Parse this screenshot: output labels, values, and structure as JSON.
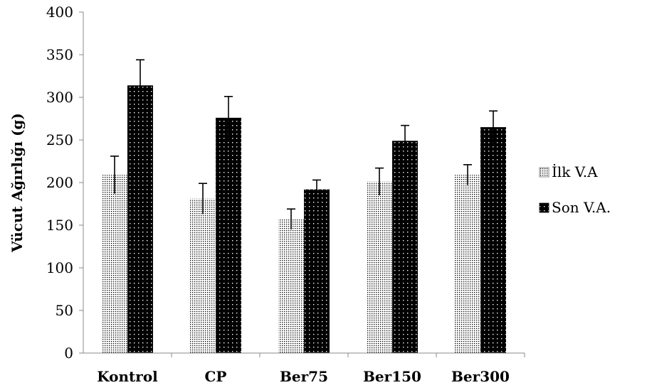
{
  "chart_data": {
    "type": "bar",
    "title": "",
    "xlabel": "",
    "ylabel": "Vücut Ağırlığı (g)",
    "ylim": [
      0,
      400
    ],
    "yticks": [
      0,
      50,
      100,
      150,
      200,
      250,
      300,
      350,
      400
    ],
    "grid": false,
    "legend_position": "right",
    "categories": [
      "Kontrol",
      "CP",
      "Ber75",
      "Ber150",
      "Ber300"
    ],
    "series": [
      {
        "name": "İlk V.A",
        "pattern": "fine-dots",
        "colors": {
          "fill": "#ffffff",
          "dot": "#000000"
        },
        "values": [
          209,
          181,
          157,
          201,
          209
        ],
        "errors": [
          22,
          18,
          12,
          16,
          12
        ]
      },
      {
        "name": "Son V.A.",
        "pattern": "black-with-white-dots",
        "colors": {
          "fill": "#000000",
          "dot": "#ffffff"
        },
        "values": [
          314,
          276,
          192,
          249,
          265
        ],
        "errors": [
          30,
          25,
          11,
          18,
          19
        ]
      }
    ]
  }
}
